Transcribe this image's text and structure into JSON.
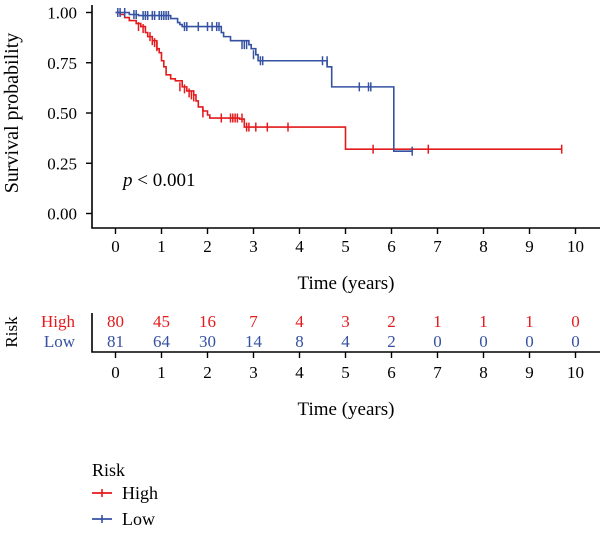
{
  "chart_data": [
    {
      "type": "line",
      "subtype": "kaplan-meier",
      "ylabel": "Survival probability",
      "xlabel": "Time (years)",
      "xlim": [
        0,
        10
      ],
      "ylim": [
        0,
        1
      ],
      "xticks": [
        "0",
        "1",
        "2",
        "3",
        "4",
        "5",
        "6",
        "7",
        "8",
        "9",
        "10"
      ],
      "yticks": [
        "0.00",
        "0.25",
        "0.50",
        "0.75",
        "1.00"
      ],
      "annotation": {
        "italic": "p",
        "rest": " < 0.001"
      },
      "grid": false,
      "series": [
        {
          "name": "High",
          "color": "#e41a1c",
          "steps": [
            [
              0,
              1.0
            ],
            [
              0.1,
              0.99
            ],
            [
              0.2,
              0.975
            ],
            [
              0.3,
              0.96
            ],
            [
              0.45,
              0.945
            ],
            [
              0.55,
              0.93
            ],
            [
              0.65,
              0.9
            ],
            [
              0.7,
              0.88
            ],
            [
              0.8,
              0.86
            ],
            [
              0.9,
              0.82
            ],
            [
              0.95,
              0.8
            ],
            [
              1.0,
              0.76
            ],
            [
              1.05,
              0.73
            ],
            [
              1.1,
              0.69
            ],
            [
              1.2,
              0.67
            ],
            [
              1.3,
              0.66
            ],
            [
              1.45,
              0.63
            ],
            [
              1.55,
              0.61
            ],
            [
              1.7,
              0.59
            ],
            [
              1.75,
              0.56
            ],
            [
              1.8,
              0.53
            ],
            [
              1.9,
              0.51
            ],
            [
              2.0,
              0.49
            ],
            [
              2.05,
              0.475
            ],
            [
              2.7,
              0.47
            ],
            [
              2.8,
              0.43
            ],
            [
              5.0,
              0.32
            ],
            [
              9.7,
              0.32
            ]
          ],
          "censor": [
            [
              0.5,
              0.93
            ],
            [
              0.6,
              0.92
            ],
            [
              0.75,
              0.88
            ],
            [
              0.8,
              0.86
            ],
            [
              0.85,
              0.85
            ],
            [
              0.9,
              0.83
            ],
            [
              1.4,
              0.63
            ],
            [
              1.5,
              0.62
            ],
            [
              1.6,
              0.6
            ],
            [
              1.65,
              0.59
            ],
            [
              1.7,
              0.58
            ],
            [
              1.9,
              0.5
            ],
            [
              2.3,
              0.475
            ],
            [
              2.5,
              0.475
            ],
            [
              2.55,
              0.475
            ],
            [
              2.6,
              0.475
            ],
            [
              2.65,
              0.475
            ],
            [
              2.75,
              0.475
            ],
            [
              2.85,
              0.43
            ],
            [
              2.9,
              0.43
            ],
            [
              3.05,
              0.43
            ],
            [
              3.3,
              0.43
            ],
            [
              3.75,
              0.43
            ],
            [
              5.6,
              0.32
            ],
            [
              6.8,
              0.32
            ],
            [
              9.7,
              0.32
            ]
          ]
        },
        {
          "name": "Low",
          "color": "#3451a2",
          "steps": [
            [
              0,
              1.0
            ],
            [
              0.3,
              0.99
            ],
            [
              0.5,
              0.985
            ],
            [
              1.2,
              0.97
            ],
            [
              1.35,
              0.95
            ],
            [
              1.4,
              0.94
            ],
            [
              1.45,
              0.93
            ],
            [
              1.6,
              0.93
            ],
            [
              2.3,
              0.9
            ],
            [
              2.35,
              0.88
            ],
            [
              2.5,
              0.86
            ],
            [
              2.9,
              0.84
            ],
            [
              2.95,
              0.82
            ],
            [
              3.05,
              0.79
            ],
            [
              3.1,
              0.76
            ],
            [
              4.6,
              0.73
            ],
            [
              4.7,
              0.63
            ],
            [
              6.05,
              0.31
            ],
            [
              6.45,
              0.31
            ]
          ],
          "censor": [
            [
              0.05,
              1.0
            ],
            [
              0.1,
              1.0
            ],
            [
              0.2,
              1.0
            ],
            [
              0.4,
              0.99
            ],
            [
              0.45,
              0.99
            ],
            [
              0.6,
              0.985
            ],
            [
              0.65,
              0.985
            ],
            [
              0.7,
              0.985
            ],
            [
              0.8,
              0.985
            ],
            [
              0.85,
              0.985
            ],
            [
              0.95,
              0.985
            ],
            [
              1.0,
              0.985
            ],
            [
              1.05,
              0.985
            ],
            [
              1.1,
              0.985
            ],
            [
              1.15,
              0.985
            ],
            [
              1.5,
              0.93
            ],
            [
              1.55,
              0.93
            ],
            [
              1.8,
              0.93
            ],
            [
              2.0,
              0.93
            ],
            [
              2.1,
              0.93
            ],
            [
              2.2,
              0.93
            ],
            [
              2.25,
              0.93
            ],
            [
              2.75,
              0.84
            ],
            [
              2.8,
              0.84
            ],
            [
              2.85,
              0.84
            ],
            [
              3.0,
              0.79
            ],
            [
              3.15,
              0.76
            ],
            [
              3.2,
              0.76
            ],
            [
              4.5,
              0.76
            ],
            [
              4.6,
              0.76
            ],
            [
              5.3,
              0.63
            ],
            [
              5.5,
              0.63
            ],
            [
              5.55,
              0.63
            ],
            [
              6.45,
              0.31
            ]
          ]
        }
      ]
    },
    {
      "type": "table",
      "title": "Risk",
      "xlabel": "Time (years)",
      "xticks": [
        "0",
        "1",
        "2",
        "3",
        "4",
        "5",
        "6",
        "7",
        "8",
        "9",
        "10"
      ],
      "rows": [
        {
          "label": "High",
          "color": "#e41a1c",
          "values": [
            "80",
            "45",
            "16",
            "7",
            "4",
            "3",
            "2",
            "1",
            "1",
            "1",
            "0"
          ]
        },
        {
          "label": "Low",
          "color": "#3451a2",
          "values": [
            "81",
            "64",
            "30",
            "14",
            "8",
            "4",
            "2",
            "0",
            "0",
            "0",
            "0"
          ]
        }
      ]
    }
  ],
  "legend": {
    "title": "Risk",
    "items": [
      {
        "label": "High",
        "color": "#e41a1c"
      },
      {
        "label": "Low",
        "color": "#3451a2"
      }
    ]
  }
}
